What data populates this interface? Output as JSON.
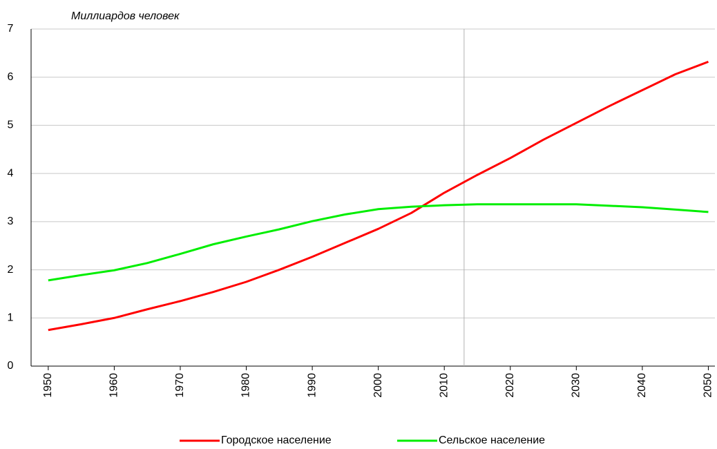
{
  "chart_data": {
    "type": "line",
    "y_label": "Миллиардов человек",
    "x": [
      1950,
      1955,
      1960,
      1965,
      1970,
      1975,
      1980,
      1985,
      1990,
      1995,
      2000,
      2005,
      2010,
      2015,
      2020,
      2025,
      2030,
      2035,
      2040,
      2045,
      2050
    ],
    "series": [
      {
        "name": "Городское население",
        "color": "#ff0000",
        "values": [
          0.75,
          0.87,
          1.0,
          1.18,
          1.35,
          1.54,
          1.75,
          2.0,
          2.27,
          2.56,
          2.85,
          3.18,
          3.6,
          3.97,
          4.32,
          4.7,
          5.05,
          5.4,
          5.73,
          6.06,
          6.32
        ]
      },
      {
        "name": "Сельское население",
        "color": "#00ee00",
        "values": [
          1.78,
          1.89,
          1.99,
          2.14,
          2.33,
          2.53,
          2.69,
          2.84,
          3.01,
          3.15,
          3.26,
          3.31,
          3.34,
          3.36,
          3.36,
          3.36,
          3.36,
          3.33,
          3.3,
          3.25,
          3.2
        ]
      }
    ],
    "xlim": [
      1947.4,
      2051
    ],
    "xticks": [
      1950,
      1960,
      1970,
      1980,
      1990,
      2000,
      2010,
      2020,
      2030,
      2040,
      2050
    ],
    "ylim": [
      0,
      7
    ],
    "yticks": [
      0,
      1,
      2,
      3,
      4,
      5,
      6,
      7
    ],
    "grid": true,
    "vline_x": 2013,
    "legend": "bottom"
  }
}
